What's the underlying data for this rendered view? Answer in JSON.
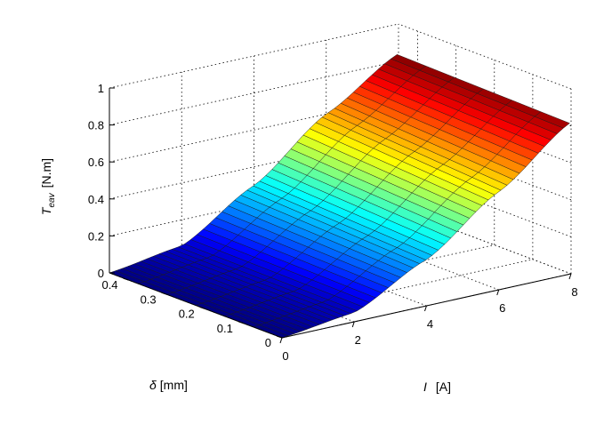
{
  "chart_data": {
    "type": "surface",
    "xlabel_symbol": "δ",
    "xlabel_unit": "[mm]",
    "ylabel_symbol": "I",
    "ylabel_unit": "[A]",
    "zlabel_symbol": "T",
    "zlabel_subscript": "eav",
    "zlabel_unit": "[N.m]",
    "x_ticks": [
      "0",
      "0.1",
      "0.2",
      "0.3",
      "0.4"
    ],
    "y_ticks": [
      "0",
      "2",
      "4",
      "6",
      "8"
    ],
    "z_ticks": [
      "0",
      "0.2",
      "0.4",
      "0.6",
      "0.8",
      "1"
    ],
    "xlim": [
      0,
      0.45
    ],
    "ylim": [
      0,
      8
    ],
    "zlim": [
      0,
      1
    ],
    "grid": true,
    "colormap": "jet",
    "surface_samples": {
      "I": [
        0,
        2,
        4,
        6,
        8
      ],
      "T_at_delta_0": [
        0,
        0.05,
        0.25,
        0.53,
        0.82
      ],
      "T_at_delta_0.45": [
        0,
        0.06,
        0.3,
        0.6,
        0.84
      ]
    }
  }
}
